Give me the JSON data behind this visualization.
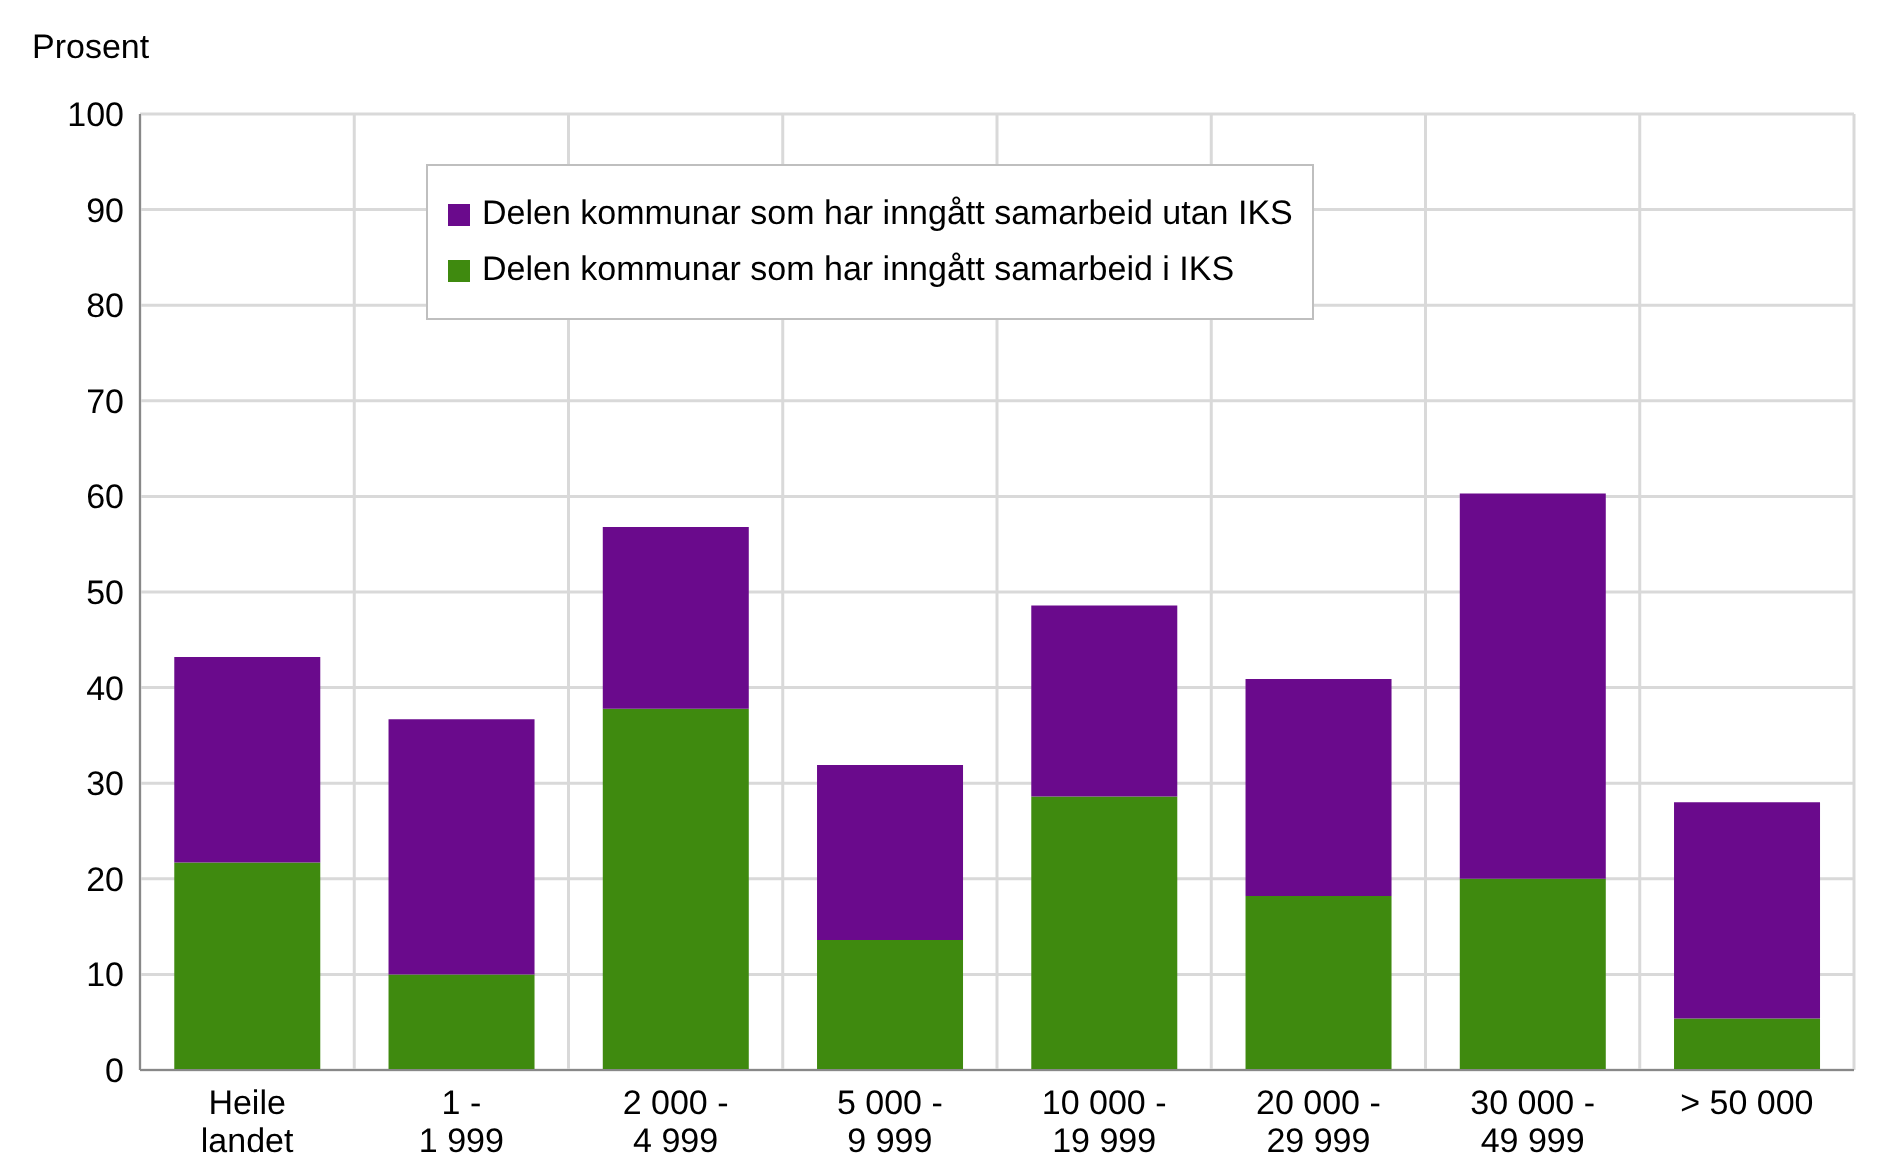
{
  "chart_data": {
    "type": "bar",
    "stacked": true,
    "ylabel": "Prosent",
    "categories": [
      "Heile landet",
      "1 - 1 999",
      "2 000 - 4 999",
      "5 000 - 9 999",
      "10 000 - 19 999",
      "20 000 - 29 999",
      "30 000 - 49 999",
      "> 50 000"
    ],
    "series": [
      {
        "name": "Delen kommunar som har inngått samarbeid i IKS",
        "color": "#3f8a0f",
        "values": [
          21.7,
          10.0,
          37.8,
          13.6,
          28.6,
          18.2,
          20.0,
          5.4
        ]
      },
      {
        "name": "Delen kommunar som har inngått samarbeid utan IKS",
        "color": "#6a0a8c",
        "values": [
          21.5,
          26.7,
          19.0,
          18.3,
          20.0,
          22.7,
          40.3,
          22.6
        ]
      }
    ],
    "ylim": [
      0,
      100
    ],
    "yticks": [
      0,
      10,
      20,
      30,
      40,
      50,
      60,
      70,
      80,
      90,
      100
    ],
    "grid": true,
    "legend": "top"
  }
}
